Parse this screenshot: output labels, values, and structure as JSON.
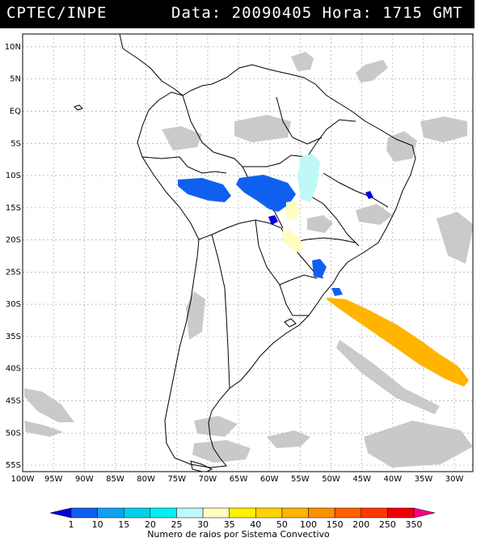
{
  "header": {
    "org": "CPTEC/INPE",
    "timestamp": "Data: 20090405 Hora: 1715 GMT"
  },
  "map": {
    "lat_labels": [
      "10N",
      "5N",
      "EQ",
      "5S",
      "10S",
      "15S",
      "20S",
      "25S",
      "30S",
      "35S",
      "40S",
      "45S",
      "50S",
      "55S"
    ],
    "lon_labels": [
      "100W",
      "95W",
      "90W",
      "85W",
      "80W",
      "75W",
      "70W",
      "65W",
      "60W",
      "55W",
      "50W",
      "45W",
      "40W",
      "35W",
      "30W"
    ],
    "lat_range": [
      -56,
      12
    ],
    "lon_range": [
      -100,
      -27
    ],
    "grid": true,
    "cloud_color": "#c0c0c0"
  },
  "legend": {
    "title": "Numero de raios por Sistema Convectivo",
    "ticks": [
      "1",
      "10",
      "15",
      "20",
      "25",
      "30",
      "35",
      "40",
      "50",
      "100",
      "150",
      "200",
      "250",
      "350"
    ],
    "colors": [
      "#0000e0",
      "#1060f0",
      "#10a0f0",
      "#00d0e8",
      "#00f0f0",
      "#c0f8f8",
      "#fffcc0",
      "#fff000",
      "#ffd400",
      "#ffb400",
      "#ff9000",
      "#ff6000",
      "#ff3800",
      "#f00000",
      "#ff0080"
    ]
  }
}
